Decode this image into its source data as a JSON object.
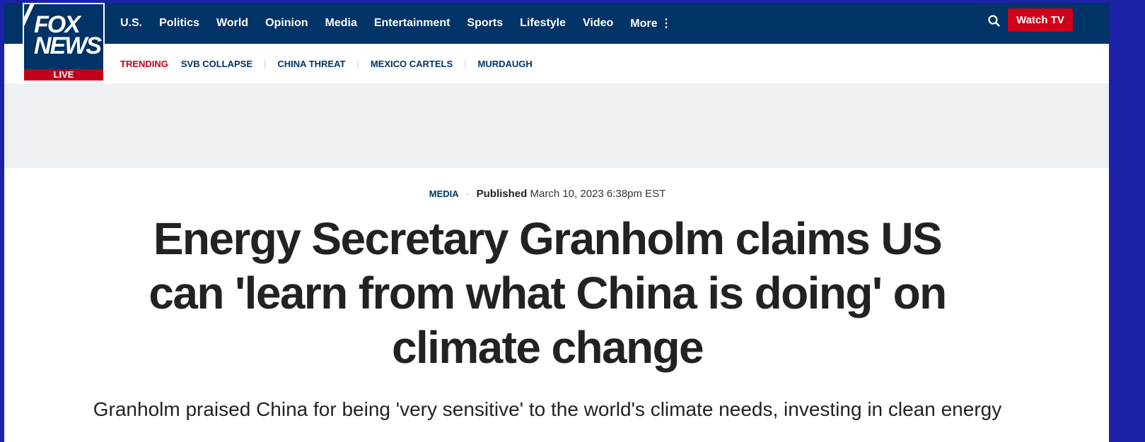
{
  "header": {
    "logo": {
      "line1": "FOX",
      "line2": "NEWS",
      "badge": "LIVE"
    },
    "nav": [
      "U.S.",
      "Politics",
      "World",
      "Opinion",
      "Media",
      "Entertainment",
      "Sports",
      "Lifestyle",
      "Video",
      "More ⋮"
    ],
    "watch_tv": "Watch TV",
    "trending_label": "TRENDING",
    "trending": [
      "SVB COLLAPSE",
      "CHINA THREAT",
      "MEXICO CARTELS",
      "MURDAUGH"
    ]
  },
  "article": {
    "category": "MEDIA",
    "published_label": "Published",
    "date": "March 10, 2023 6:38pm EST",
    "headline": "Energy Secretary Granholm claims US can 'learn from what China is doing' on climate change",
    "dek": "Granholm praised China for being 'very sensitive' to the world's climate needs, investing in clean energy"
  }
}
